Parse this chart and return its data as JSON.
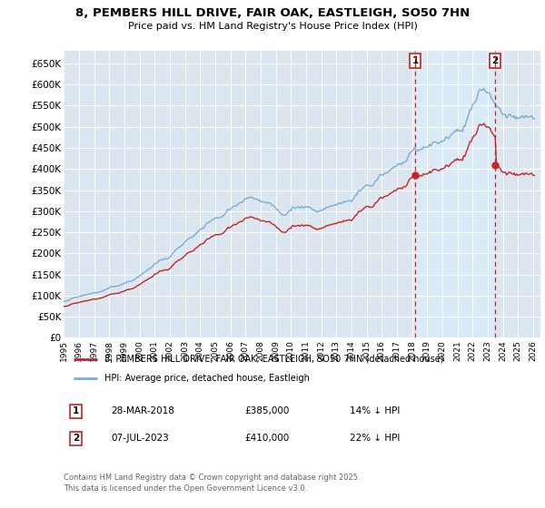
{
  "title": "8, PEMBERS HILL DRIVE, FAIR OAK, EASTLEIGH, SO50 7HN",
  "subtitle": "Price paid vs. HM Land Registry's House Price Index (HPI)",
  "ylim": [
    0,
    680000
  ],
  "yticks": [
    0,
    50000,
    100000,
    150000,
    200000,
    250000,
    300000,
    350000,
    400000,
    450000,
    500000,
    550000,
    600000,
    650000
  ],
  "ytick_labels": [
    "£0",
    "£50K",
    "£100K",
    "£150K",
    "£200K",
    "£250K",
    "£300K",
    "£350K",
    "£400K",
    "£450K",
    "£500K",
    "£550K",
    "£600K",
    "£650K"
  ],
  "vline1_x": 2018.21,
  "vline2_x": 2023.5,
  "marker1_x": 2018.21,
  "marker1_y": 385000,
  "marker2_x": 2023.5,
  "marker2_y": 410000,
  "legend_line1": "8, PEMBERS HILL DRIVE, FAIR OAK, EASTLEIGH, SO50 7HN (detached house)",
  "legend_line2": "HPI: Average price, detached house, Eastleigh",
  "annotation1": [
    "1",
    "28-MAR-2018",
    "£385,000",
    "14% ↓ HPI"
  ],
  "annotation2": [
    "2",
    "07-JUL-2023",
    "£410,000",
    "22% ↓ HPI"
  ],
  "footer": "Contains HM Land Registry data © Crown copyright and database right 2025.\nThis data is licensed under the Open Government Licence v3.0.",
  "hpi_color": "#7aadd4",
  "price_color": "#cc2222",
  "shade_color": "#daeaf6",
  "grid_color": "#ffffff",
  "vline_color": "#cc2222",
  "plot_bg_color": "#dce6f1",
  "xlim_start": 1995,
  "xlim_end": 2026.5
}
